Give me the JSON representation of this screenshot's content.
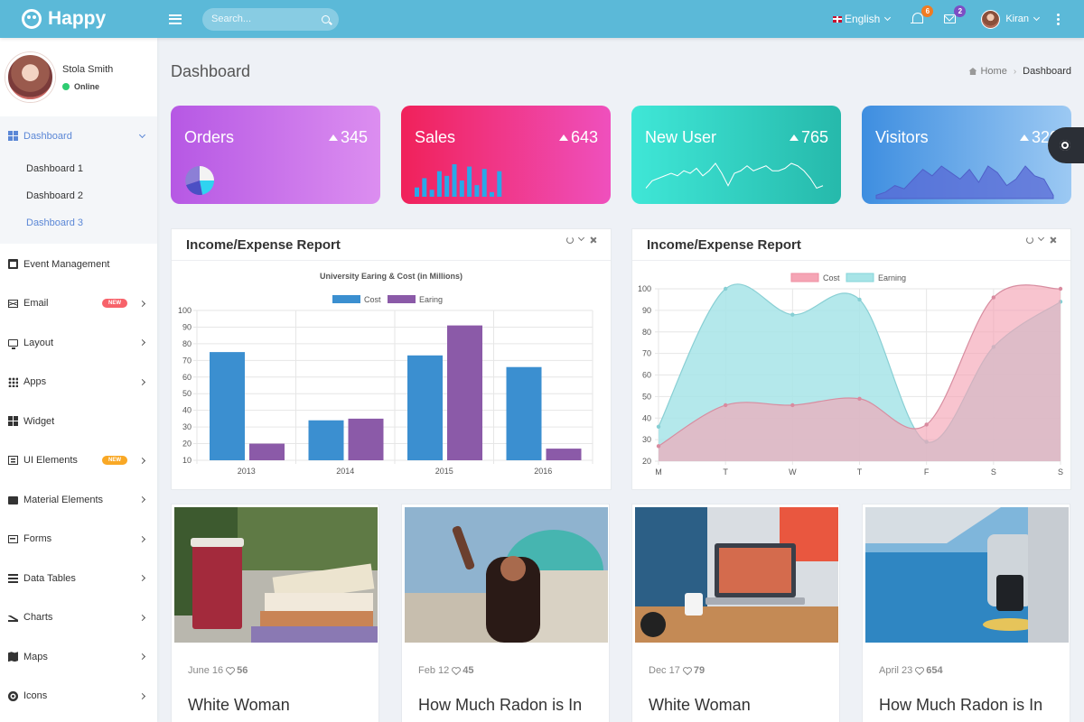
{
  "brand": {
    "name": "Happy"
  },
  "search": {
    "placeholder": "Search..."
  },
  "header": {
    "language": "English",
    "notifications_count": "6",
    "messages_count": "2",
    "user_name": "Kiran"
  },
  "profile": {
    "name": "Stola Smith",
    "status": "Online"
  },
  "sidebar": {
    "dashboard": {
      "label": "Dashboard",
      "children": [
        "Dashboard 1",
        "Dashboard 2",
        "Dashboard 3"
      ]
    },
    "items": [
      {
        "label": "Event Management"
      },
      {
        "label": "Email",
        "badge": "NEW",
        "badge_color": "#f7626a"
      },
      {
        "label": "Layout"
      },
      {
        "label": "Apps"
      },
      {
        "label": "Widget"
      },
      {
        "label": "UI Elements",
        "badge": "NEW",
        "badge_color": "#f9a825"
      },
      {
        "label": "Material Elements"
      },
      {
        "label": "Forms"
      },
      {
        "label": "Data Tables"
      },
      {
        "label": "Charts"
      },
      {
        "label": "Maps"
      },
      {
        "label": "Icons"
      }
    ]
  },
  "page": {
    "title": "Dashboard",
    "breadcrumb_home": "Home",
    "breadcrumb_sep": "›",
    "breadcrumb_current": "Dashboard"
  },
  "stats": [
    {
      "title": "Orders",
      "value": "345",
      "colors": [
        "#b658e4",
        "#dc8ef0"
      ]
    },
    {
      "title": "Sales",
      "value": "643",
      "colors": [
        "#f0215a",
        "#ef50bd"
      ],
      "bars": [
        4,
        8,
        3,
        11,
        9,
        14,
        7,
        13,
        5,
        12,
        2,
        11
      ]
    },
    {
      "title": "New User",
      "value": "765",
      "colors": [
        "#3fe7d7",
        "#26b9ab"
      ],
      "line": [
        2,
        5,
        6,
        7,
        8,
        7,
        9,
        8,
        10,
        7,
        9,
        12,
        8,
        3,
        8,
        9,
        11,
        9,
        10,
        11,
        9,
        9,
        10,
        12,
        11,
        9,
        6,
        2,
        3
      ]
    },
    {
      "title": "Visitors",
      "value": "320",
      "colors": [
        "#3e8ee0",
        "#9cc9f3"
      ],
      "area": [
        1,
        2,
        4,
        3,
        6,
        9,
        7,
        10,
        8,
        6,
        9,
        5,
        10,
        8,
        4,
        6,
        10,
        7,
        6,
        1
      ]
    }
  ],
  "panels": [
    {
      "title": "Income/Expense Report"
    },
    {
      "title": "Income/Expense Report"
    }
  ],
  "chart_data": [
    {
      "type": "bar",
      "title": "University Earing & Cost (in Millions)",
      "categories": [
        "2013",
        "2014",
        "2015",
        "2016"
      ],
      "series": [
        {
          "name": "Cost",
          "values": [
            75,
            34,
            73,
            66
          ],
          "color": "#3b8fd0"
        },
        {
          "name": "Earing",
          "values": [
            20,
            35,
            91,
            17
          ],
          "color": "#8b5aa8"
        }
      ],
      "ylim": [
        10,
        100
      ],
      "yticks": [
        10,
        20,
        30,
        40,
        50,
        60,
        70,
        80,
        90,
        100
      ],
      "legend": "top-center",
      "grid": true
    },
    {
      "type": "area",
      "categories": [
        "M",
        "T",
        "W",
        "T",
        "F",
        "S",
        "S"
      ],
      "series": [
        {
          "name": "Cost",
          "values": [
            27,
            46,
            46,
            49,
            37,
            96,
            100
          ],
          "color": "#f5a5b5"
        },
        {
          "name": "Earning",
          "values": [
            36,
            100,
            88,
            95,
            29,
            73,
            94
          ],
          "color": "#a7e4e7"
        }
      ],
      "ylim": [
        20,
        100
      ],
      "yticks": [
        20,
        30,
        40,
        50,
        60,
        70,
        80,
        90,
        100
      ],
      "legend": "top-center",
      "grid": true
    }
  ],
  "posts": [
    {
      "date": "June 16",
      "likes": "56",
      "title": "White Woman"
    },
    {
      "date": "Feb 12",
      "likes": "45",
      "title": "How Much Radon is In"
    },
    {
      "date": "Dec 17",
      "likes": "79",
      "title": "White Woman"
    },
    {
      "date": "April 23",
      "likes": "654",
      "title": "How Much Radon is In"
    }
  ]
}
